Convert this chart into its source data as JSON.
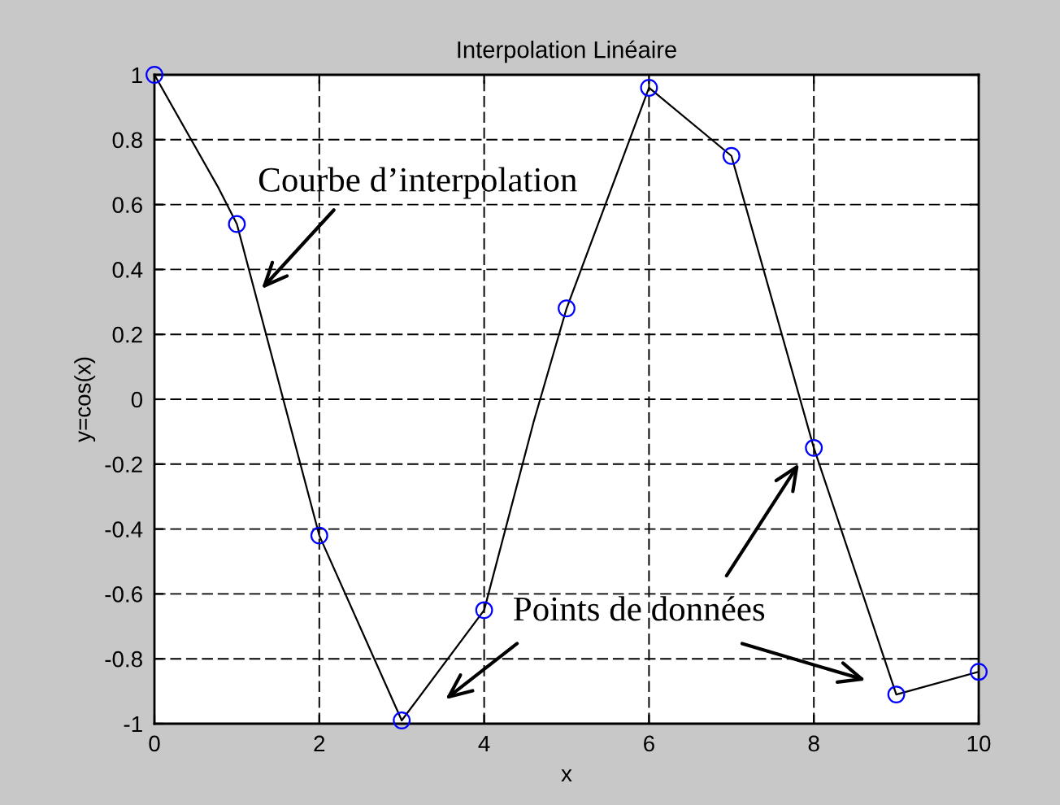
{
  "chart_data": {
    "type": "line",
    "title": "Interpolation Linéaire",
    "xlabel": "x",
    "ylabel": "y=cos(x)",
    "xlim": [
      0,
      10
    ],
    "xticks": [
      0,
      2,
      4,
      6,
      8,
      10
    ],
    "ylim": [
      -1,
      1
    ],
    "yticks": [
      -1,
      -0.8,
      -0.6,
      -0.4,
      -0.2,
      0,
      0.2,
      0.4,
      0.6,
      0.8,
      1
    ],
    "grid": true,
    "series": [
      {
        "color": "#000000",
        "marker": "none",
        "line_style": "solid",
        "x": [
          0,
          0.78,
          1,
          2,
          3,
          4,
          4.6,
          5,
          6,
          7,
          8,
          9,
          10
        ],
        "values": [
          1,
          0.65,
          0.54,
          -0.42,
          -0.99,
          -0.65,
          -0.07,
          0.28,
          0.96,
          0.75,
          -0.15,
          -0.91,
          -0.84
        ]
      },
      {
        "type": "scatter",
        "color": "#0000ff",
        "marker": "circle",
        "x": [
          0,
          1,
          2,
          3,
          4,
          5,
          6,
          7,
          8,
          9,
          10
        ],
        "values": [
          1,
          0.54,
          -0.42,
          -0.99,
          -0.65,
          0.28,
          0.96,
          0.75,
          -0.15,
          -0.91,
          -0.84
        ]
      }
    ],
    "annotations": [
      {
        "text": "Courbe d’interpolation",
        "x": 1.3,
        "y": 0.34
      },
      "Points de données"
    ]
  }
}
